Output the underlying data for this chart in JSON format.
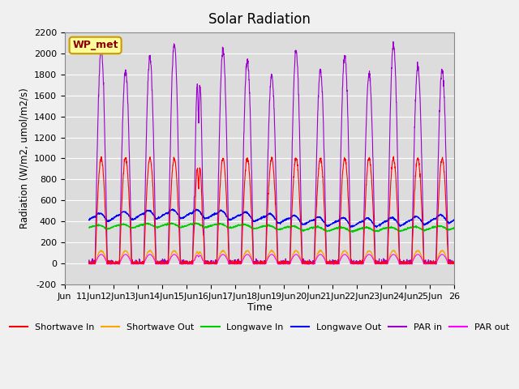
{
  "title": "Solar Radiation",
  "ylabel": "Radiation (W/m2, umol/m2/s)",
  "xlabel": "Time",
  "ylim": [
    -200,
    2200
  ],
  "yticks": [
    -200,
    0,
    200,
    400,
    600,
    800,
    1000,
    1200,
    1400,
    1600,
    1800,
    2000,
    2200
  ],
  "xlim": [
    0,
    16
  ],
  "xtick_positions": [
    0,
    1,
    2,
    3,
    4,
    5,
    6,
    7,
    8,
    9,
    10,
    11,
    12,
    13,
    14,
    15,
    16
  ],
  "xtick_labels": [
    "Jun",
    "11Jun",
    "12Jun",
    "13Jun",
    "14Jun",
    "15Jun",
    "16Jun",
    "17Jun",
    "18Jun",
    "19Jun",
    "20Jun",
    "21Jun",
    "22Jun",
    "23Jun",
    "24Jun",
    "25Jun",
    "26"
  ],
  "station_label": "WP_met",
  "colors": {
    "shortwave_in": "#ff0000",
    "shortwave_out": "#ffa500",
    "longwave_in": "#00cc00",
    "longwave_out": "#0000ff",
    "par_in": "#9900cc",
    "par_out": "#ff00ff"
  },
  "legend_labels": [
    "Shortwave In",
    "Shortwave Out",
    "Longwave In",
    "Longwave Out",
    "PAR in",
    "PAR out"
  ],
  "bg_color": "#dcdcdc",
  "fig_color": "#f0f0f0",
  "days": 15,
  "points_per_day": 144,
  "seed": 42
}
